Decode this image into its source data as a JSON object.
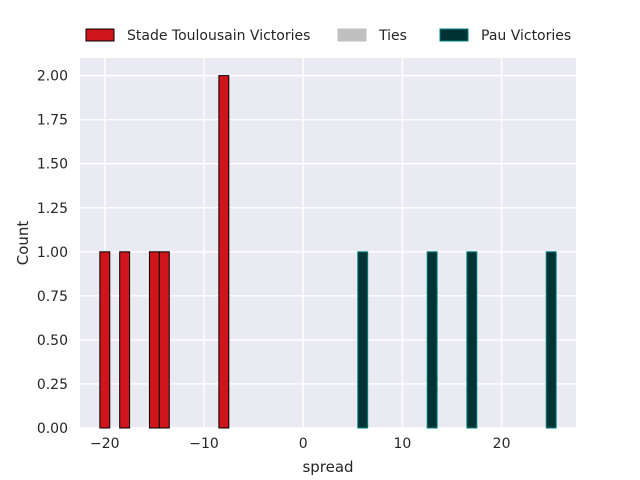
{
  "chart_data": {
    "type": "bar",
    "title": "",
    "xlabel": "spread",
    "ylabel": "Count",
    "xlim": [
      -22.5,
      27.5
    ],
    "ylim": [
      0,
      2.1
    ],
    "x_ticks": [
      -20,
      -10,
      0,
      10,
      20
    ],
    "x_tick_labels": [
      "−20",
      "−10",
      "0",
      "10",
      "20"
    ],
    "y_ticks": [
      0.0,
      0.25,
      0.5,
      0.75,
      1.0,
      1.25,
      1.5,
      1.75,
      2.0
    ],
    "y_tick_labels": [
      "0.00",
      "0.25",
      "0.50",
      "0.75",
      "1.00",
      "1.25",
      "1.50",
      "1.75",
      "2.00"
    ],
    "bin_width": 1,
    "grid": true,
    "legend_position": "top",
    "series": [
      {
        "name": "Stade Toulousain Victories",
        "color": "#d0141b",
        "edge_color": "#000000",
        "bins": [
          {
            "x": -20,
            "count": 1
          },
          {
            "x": -18,
            "count": 1
          },
          {
            "x": -15,
            "count": 1
          },
          {
            "x": -14,
            "count": 1
          },
          {
            "x": -8,
            "count": 2
          }
        ]
      },
      {
        "name": "Ties",
        "color": "#c0c0c0",
        "edge_color": "#c0c0c0",
        "bins": []
      },
      {
        "name": "Pau Victories",
        "color": "#003333",
        "edge_color": "#008080",
        "bins": [
          {
            "x": 6,
            "count": 1
          },
          {
            "x": 13,
            "count": 1
          },
          {
            "x": 17,
            "count": 1
          },
          {
            "x": 25,
            "count": 1
          }
        ]
      }
    ]
  }
}
